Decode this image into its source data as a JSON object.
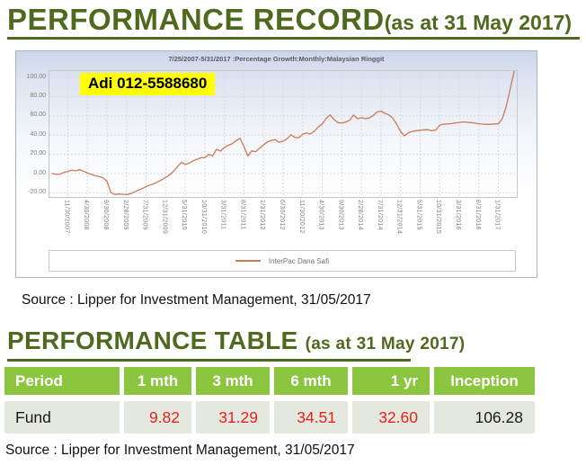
{
  "page": {
    "record_heading": "PERFORMANCE RECORD",
    "record_heading_suffix": "(as at  31 May  2017)",
    "table_heading": "PERFORMANCE TABLE",
    "table_heading_suffix": "(as at  31  May  2017)",
    "watermark": "Adi 012-5588680",
    "source_chart": "Source : Lipper for Investment Management, 31/05/2017",
    "source_table": "Source : Lipper for Investment Management, 31/05/2017"
  },
  "chart": {
    "title": "7/25/2007-5/31/2017 :Percentage Growth:Monthly:Malaysian Ringgit",
    "legend_label": "InterPac Dana Safi",
    "line_color": "#cd7a5a"
  },
  "chart_data": {
    "type": "line",
    "title": "7/25/2007-5/31/2017 :Percentage Growth:Monthly:Malaysian Ringgit",
    "ylabel": "Percentage Growth",
    "currency": "Malaysian Ringgit",
    "start_month": "2007-07",
    "end_month": "2017-05",
    "ylim": [
      -24,
      107
    ],
    "grid": true,
    "legend_position": "bottom",
    "y_ticks": [
      100,
      80,
      60,
      40,
      20,
      0,
      -20
    ],
    "y_tick_labels": [
      "100.00",
      "80.00",
      "60.00",
      "40.00",
      "20.00",
      "0.00",
      "-20.00"
    ],
    "x_tick_month_index": [
      4,
      9,
      14,
      19,
      24,
      29,
      34,
      39,
      44,
      49,
      54,
      59,
      64,
      69,
      74,
      79,
      84,
      89,
      94,
      99,
      104,
      109,
      114
    ],
    "x_tick_labels": [
      "11/30/2007",
      "4/30/2008",
      "9/30/2008",
      "2/28/2009",
      "7/31/2009",
      "12/31/2009",
      "5/31/2010",
      "10/31/2010",
      "3/31/2011",
      "8/31/2011",
      "1/31/2012",
      "6/30/2012",
      "11/30/2012",
      "4/30/2013",
      "9/30/2013",
      "2/28/2014",
      "7/31/2014",
      "12/31/2014",
      "5/31/2015",
      "10/31/2015",
      "3/31/2016",
      "8/31/2016",
      "1/31/2017"
    ],
    "series": [
      {
        "name": "InterPac Dana Safi",
        "monthly_values": [
          0.0,
          -0.8,
          -0.5,
          1.2,
          2.2,
          3.6,
          2.8,
          4.2,
          2.5,
          0.6,
          -0.8,
          -2.2,
          -3.2,
          -4.2,
          -8.0,
          -19.5,
          -21.8,
          -21.2,
          -21.5,
          -21.8,
          -21.0,
          -19.2,
          -17.2,
          -15.6,
          -13.5,
          -12.0,
          -10.4,
          -8.6,
          -6.4,
          -4.0,
          -1.2,
          2.2,
          7.0,
          11.8,
          9.6,
          10.8,
          13.2,
          15.0,
          16.4,
          16.6,
          20.0,
          18.4,
          25.2,
          23.4,
          27.2,
          29.4,
          31.0,
          34.2,
          36.6,
          28.0,
          18.2,
          23.6,
          22.8,
          26.4,
          29.8,
          33.0,
          34.6,
          35.2,
          32.4,
          33.6,
          36.2,
          40.4,
          37.6,
          37.2,
          40.8,
          42.2,
          41.2,
          44.0,
          48.6,
          51.6,
          57.4,
          61.0,
          56.2,
          53.0,
          52.4,
          53.6,
          55.4,
          60.8,
          57.0,
          58.2,
          57.0,
          57.8,
          60.2,
          64.0,
          65.0,
          62.6,
          61.0,
          57.8,
          51.4,
          43.6,
          39.2,
          42.4,
          43.8,
          44.6,
          45.0,
          45.4,
          45.6,
          44.6,
          45.2,
          50.4,
          51.4,
          51.6,
          52.0,
          52.6,
          53.2,
          53.6,
          53.4,
          53.0,
          52.4,
          51.8,
          51.4,
          51.2,
          51.2,
          51.6,
          51.8,
          57.1,
          70.0,
          87.8,
          106.28
        ]
      }
    ]
  },
  "table": {
    "headers": [
      "Period",
      "1 mth",
      "3 mth",
      "6 mth",
      "1 yr",
      "Inception"
    ],
    "row_label": "Fund",
    "row_values": [
      "9.82",
      "31.29",
      "34.51",
      "32.60",
      "106.28"
    ]
  },
  "colors": {
    "heading_green": "#4f6a1e",
    "table_header_green": "#8cc540",
    "table_row_bg": "#e5e8df",
    "negative_red": "#e8211d",
    "line_salmon": "#cd7a5a",
    "watermark_yellow": "#ffff00"
  }
}
